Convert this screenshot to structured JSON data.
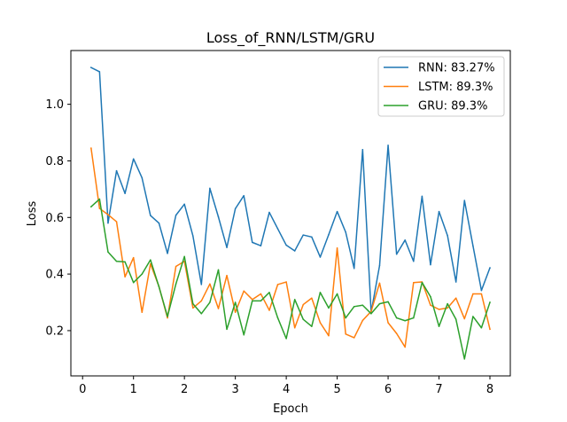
{
  "chart_data": {
    "type": "line",
    "title": "Loss_of_RNN/LSTM/GRU",
    "xlabel": "Epoch",
    "ylabel": "Loss",
    "xlim": [
      -0.23,
      8.4
    ],
    "ylim": [
      0.04,
      1.19
    ],
    "xticks": [
      0,
      1,
      2,
      3,
      4,
      5,
      6,
      7,
      8
    ],
    "yticks": [
      0.2,
      0.4,
      0.6,
      0.8,
      1.0
    ],
    "xtick_labels": [
      "0",
      "1",
      "2",
      "3",
      "4",
      "5",
      "6",
      "7",
      "8"
    ],
    "ytick_labels": [
      "0.2",
      "0.4",
      "0.6",
      "0.8",
      "1.0"
    ],
    "grid": false,
    "legend_position": "top-right",
    "x": [
      0.167,
      0.333,
      0.5,
      0.667,
      0.833,
      1.0,
      1.167,
      1.333,
      1.5,
      1.667,
      1.833,
      2.0,
      2.167,
      2.333,
      2.5,
      2.667,
      2.833,
      3.0,
      3.167,
      3.333,
      3.5,
      3.667,
      3.833,
      4.0,
      4.167,
      4.333,
      4.5,
      4.667,
      4.833,
      5.0,
      5.167,
      5.333,
      5.5,
      5.667,
      5.833,
      6.0,
      6.167,
      6.333,
      6.5,
      6.667,
      6.833,
      7.0,
      7.167,
      7.333,
      7.5,
      7.667,
      7.833,
      8.0
    ],
    "series": [
      {
        "name": "RNN: 83.27%",
        "color": "#1f77b4",
        "values": [
          1.13,
          1.115,
          0.58,
          0.765,
          0.685,
          0.807,
          0.74,
          0.607,
          0.58,
          0.473,
          0.608,
          0.647,
          0.535,
          0.363,
          0.703,
          0.602,
          0.494,
          0.631,
          0.677,
          0.512,
          0.5,
          0.618,
          0.56,
          0.502,
          0.482,
          0.538,
          0.531,
          0.46,
          0.539,
          0.621,
          0.548,
          0.42,
          0.84,
          0.265,
          0.43,
          0.855,
          0.47,
          0.52,
          0.445,
          0.675,
          0.433,
          0.621,
          0.536,
          0.372,
          0.66,
          0.5,
          0.342,
          0.422
        ]
      },
      {
        "name": "LSTM: 89.3%",
        "color": "#ff7f0e",
        "values": [
          0.845,
          0.632,
          0.61,
          0.585,
          0.39,
          0.458,
          0.265,
          0.436,
          0.356,
          0.245,
          0.427,
          0.445,
          0.28,
          0.305,
          0.365,
          0.278,
          0.395,
          0.265,
          0.34,
          0.31,
          0.33,
          0.272,
          0.363,
          0.372,
          0.21,
          0.292,
          0.315,
          0.228,
          0.182,
          0.492,
          0.188,
          0.175,
          0.236,
          0.268,
          0.368,
          0.228,
          0.19,
          0.142,
          0.37,
          0.372,
          0.29,
          0.275,
          0.28,
          0.315,
          0.242,
          0.33,
          0.33,
          0.205
        ]
      },
      {
        "name": "GRU: 89.3%",
        "color": "#2ca02c",
        "values": [
          0.638,
          0.665,
          0.478,
          0.445,
          0.443,
          0.37,
          0.4,
          0.45,
          0.355,
          0.25,
          0.365,
          0.462,
          0.295,
          0.26,
          0.3,
          0.415,
          0.205,
          0.3,
          0.185,
          0.305,
          0.305,
          0.335,
          0.245,
          0.172,
          0.31,
          0.24,
          0.215,
          0.335,
          0.28,
          0.33,
          0.245,
          0.285,
          0.29,
          0.26,
          0.295,
          0.302,
          0.245,
          0.235,
          0.245,
          0.37,
          0.32,
          0.215,
          0.295,
          0.24,
          0.1,
          0.25,
          0.21,
          0.3
        ]
      }
    ]
  }
}
